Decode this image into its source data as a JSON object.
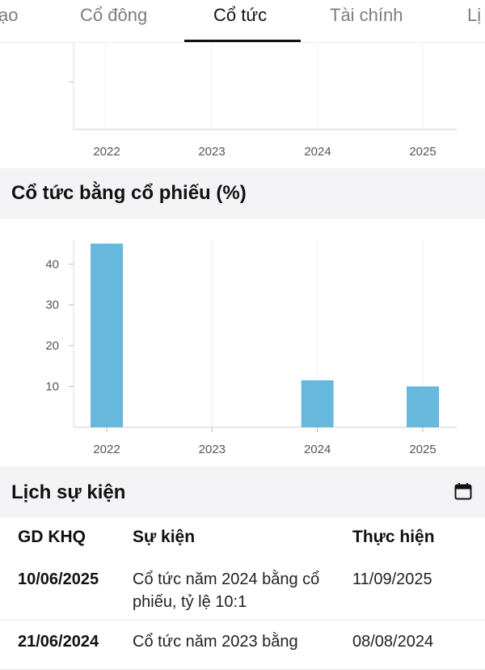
{
  "tabs": [
    {
      "label": "ạo",
      "active": false
    },
    {
      "label": "Cổ đông",
      "active": false
    },
    {
      "label": "Cổ tức",
      "active": true
    },
    {
      "label": "Tài chính",
      "active": false
    },
    {
      "label": "Lị",
      "active": false
    }
  ],
  "cash_chart": {
    "x_labels": [
      "2022",
      "2023",
      "2024",
      "2025"
    ]
  },
  "stock_dividend_section": {
    "title": "Cổ tức bằng cổ phiếu (%)"
  },
  "chart_data": {
    "type": "bar",
    "title": "Cổ tức bằng cổ phiếu (%)",
    "categories": [
      "2022",
      "2023",
      "2024",
      "2025"
    ],
    "values": [
      45,
      0,
      11.5,
      10
    ],
    "yticks": [
      10,
      20,
      30,
      40
    ],
    "ylim": [
      0,
      46
    ],
    "color": "#66b8dc",
    "grid": true
  },
  "events": {
    "title": "Lịch sự kiện",
    "icon": "calendar-icon",
    "columns": [
      "GD KHQ",
      "Sự kiện",
      "Thực hiện"
    ],
    "rows": [
      {
        "date": "10/06/2025",
        "event": "Cổ tức năm 2024 bằng cổ phiếu, tỷ lệ 10:1",
        "done": "11/09/2025"
      },
      {
        "date": "21/06/2024",
        "event": "Cổ tức năm 2023 bằng",
        "done": "08/08/2024"
      }
    ]
  }
}
